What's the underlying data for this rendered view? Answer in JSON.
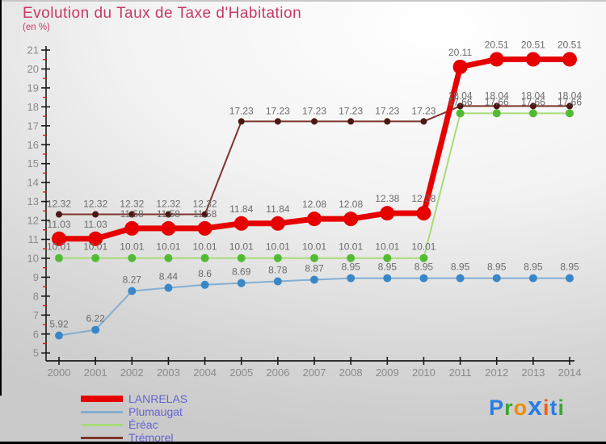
{
  "chart_data": {
    "type": "line",
    "title": "Evolution du Taux de Taxe d'Habitation",
    "subtitle": "(en %)",
    "x": [
      2000,
      2001,
      2002,
      2003,
      2004,
      2005,
      2006,
      2007,
      2008,
      2009,
      2010,
      2011,
      2012,
      2013,
      2014
    ],
    "ylim": [
      5,
      21
    ],
    "ytick_major_step": 1,
    "ytick_minor_step": 0.5,
    "grid": false,
    "legend_position": "bottom-left",
    "axis_color": "#1a1a1a",
    "minor_tick_color": "#cc2020",
    "axis_label_color": "#8a8a8a",
    "data_label_color": "#6b6b6b",
    "series": [
      {
        "name": "LANRELAS",
        "color": "#e60000",
        "marker_color": "#e60000",
        "line_width": 7,
        "marker_radius": 9,
        "values": [
          11.03,
          11.03,
          11.58,
          11.58,
          11.58,
          11.84,
          11.84,
          12.08,
          12.08,
          12.38,
          12.38,
          20.11,
          20.51,
          20.51,
          20.51
        ]
      },
      {
        "name": "Plumaugat",
        "color": "#84aed2",
        "marker_color": "#3a87c8",
        "line_width": 2,
        "marker_radius": 5,
        "values": [
          5.92,
          6.22,
          8.27,
          8.44,
          8.6,
          8.69,
          8.78,
          8.87,
          8.95,
          8.95,
          8.95,
          8.95,
          8.95,
          8.95,
          8.95
        ]
      },
      {
        "name": "Éréac",
        "color": "#a9db7a",
        "marker_color": "#52bb34",
        "line_width": 2,
        "marker_radius": 5,
        "values": [
          10.01,
          10.01,
          10.01,
          10.01,
          10.01,
          10.01,
          10.01,
          10.01,
          10.01,
          10.01,
          10.01,
          17.66,
          17.66,
          17.66,
          17.66
        ]
      },
      {
        "name": "Trémorel",
        "color": "#7e352b",
        "marker_color": "#4a1712",
        "line_width": 2,
        "marker_radius": 4,
        "values": [
          12.32,
          12.32,
          12.32,
          12.32,
          12.32,
          17.23,
          17.23,
          17.23,
          17.23,
          17.23,
          17.23,
          18.04,
          18.04,
          18.04,
          18.04
        ]
      }
    ]
  },
  "legend": {
    "swatch_heights": [
      8,
      3,
      3,
      3
    ],
    "text_color": "#6363d4"
  },
  "logo": {
    "text": "Proxiti",
    "letters": [
      {
        "char": "P",
        "color": "#2a7de1",
        "big": false
      },
      {
        "char": "r",
        "color": "#3aa635",
        "big": false
      },
      {
        "char": "o",
        "color": "#f08c00",
        "big": false
      },
      {
        "char": "x",
        "color": "#2a7de1",
        "big": true
      },
      {
        "char": "i",
        "color": "#e8601c",
        "big": false
      },
      {
        "char": "t",
        "color": "#2a7de1",
        "big": false
      },
      {
        "char": "i",
        "color": "#3aa635",
        "big": false
      }
    ]
  }
}
